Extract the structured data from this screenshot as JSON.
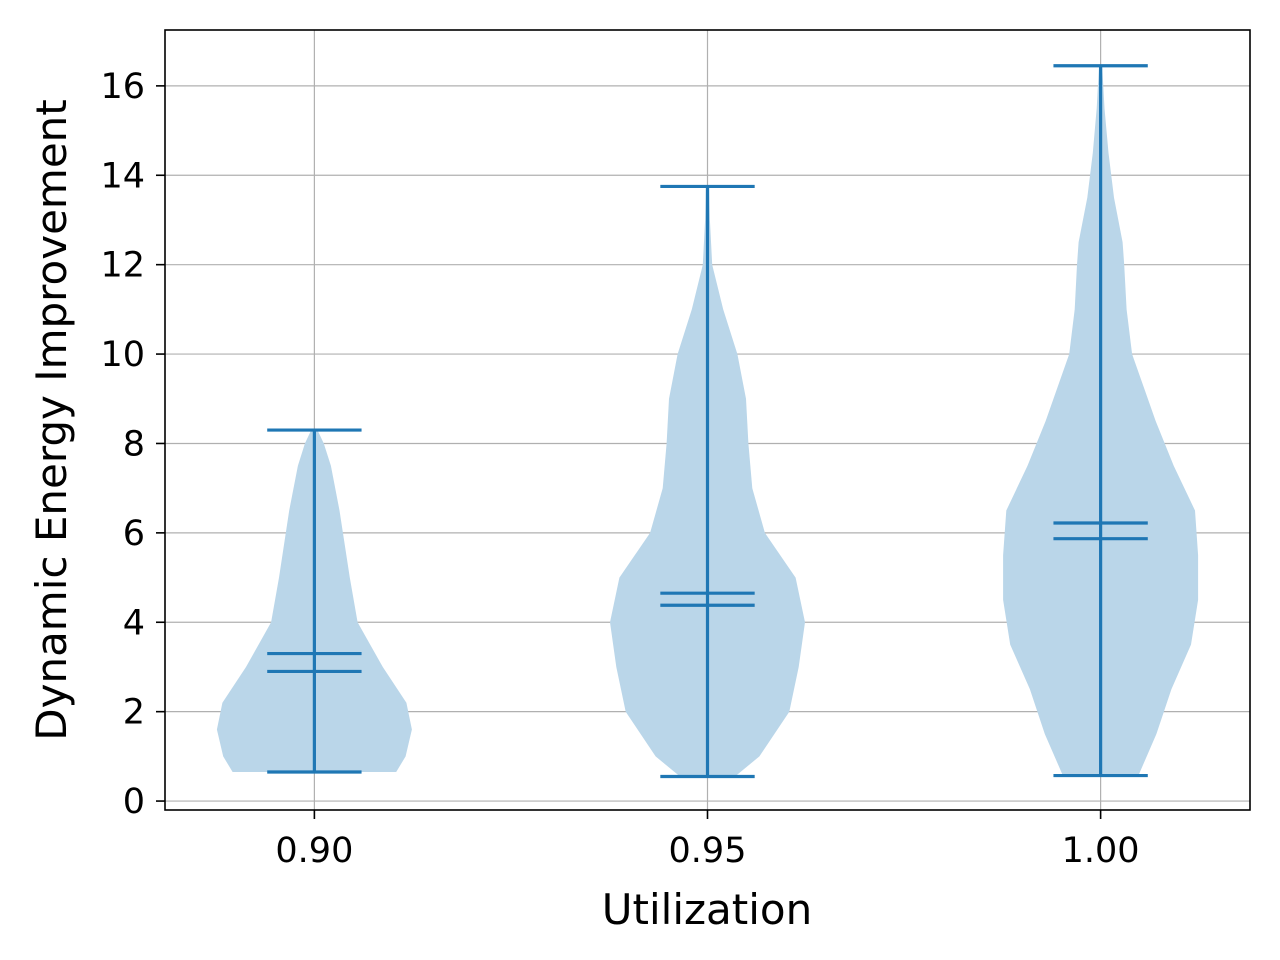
{
  "chart_data": {
    "type": "violin",
    "xlabel": "Utilization",
    "ylabel": "Dynamic Energy Improvement",
    "xlim": [
      0.881,
      1.019
    ],
    "ylim": [
      -0.2,
      17.25
    ],
    "grid": true,
    "x_ticks": [
      {
        "value": 0.9,
        "label": "0.90"
      },
      {
        "value": 0.95,
        "label": "0.95"
      },
      {
        "value": 1.0,
        "label": "1.00"
      }
    ],
    "y_ticks": [
      {
        "value": 0,
        "label": "0"
      },
      {
        "value": 2,
        "label": "2"
      },
      {
        "value": 4,
        "label": "4"
      },
      {
        "value": 6,
        "label": "6"
      },
      {
        "value": 8,
        "label": "8"
      },
      {
        "value": 10,
        "label": "10"
      },
      {
        "value": 12,
        "label": "12"
      },
      {
        "value": 14,
        "label": "14"
      },
      {
        "value": 16,
        "label": "16"
      }
    ],
    "colors": {
      "body": "#bad6e9",
      "lines": "#1f77b4",
      "grid": "#b0b0b0"
    },
    "violins": [
      {
        "position": 0.9,
        "min": 0.65,
        "max": 8.3,
        "mean": 3.3,
        "median": 2.9,
        "profile": [
          [
            0.65,
            0.0104
          ],
          [
            1.0,
            0.0116
          ],
          [
            1.6,
            0.0124
          ],
          [
            2.2,
            0.0117
          ],
          [
            3.0,
            0.0087
          ],
          [
            4.0,
            0.0055
          ],
          [
            5.0,
            0.0045
          ],
          [
            6.5,
            0.0032
          ],
          [
            7.5,
            0.0021
          ],
          [
            8.0,
            0.0012
          ],
          [
            8.3,
            0.0004
          ]
        ]
      },
      {
        "position": 0.95,
        "min": 0.55,
        "max": 13.75,
        "mean": 4.65,
        "median": 4.38,
        "profile": [
          [
            0.55,
            0.0035
          ],
          [
            1.0,
            0.0066
          ],
          [
            2.0,
            0.0104
          ],
          [
            3.0,
            0.0116
          ],
          [
            4.0,
            0.0124
          ],
          [
            5.0,
            0.0112
          ],
          [
            6.0,
            0.0073
          ],
          [
            7.0,
            0.0057
          ],
          [
            8.0,
            0.0052
          ],
          [
            9.0,
            0.0049
          ],
          [
            10.0,
            0.0038
          ],
          [
            11.0,
            0.002
          ],
          [
            12.0,
            0.0006
          ],
          [
            13.0,
            0.0003
          ],
          [
            13.75,
            0.0002
          ]
        ]
      },
      {
        "position": 1.0,
        "min": 0.57,
        "max": 16.45,
        "mean": 6.22,
        "median": 5.87,
        "profile": [
          [
            0.57,
            0.0048
          ],
          [
            1.5,
            0.0071
          ],
          [
            2.5,
            0.009
          ],
          [
            3.5,
            0.0115
          ],
          [
            4.5,
            0.0124
          ],
          [
            5.5,
            0.0124
          ],
          [
            6.5,
            0.012
          ],
          [
            7.5,
            0.0093
          ],
          [
            8.5,
            0.007
          ],
          [
            10.0,
            0.004
          ],
          [
            11.0,
            0.0033
          ],
          [
            12.0,
            0.003
          ],
          [
            12.5,
            0.0028
          ],
          [
            13.5,
            0.0017
          ],
          [
            14.5,
            0.001
          ],
          [
            15.5,
            0.0005
          ],
          [
            16.45,
            0.0002
          ]
        ]
      }
    ]
  }
}
